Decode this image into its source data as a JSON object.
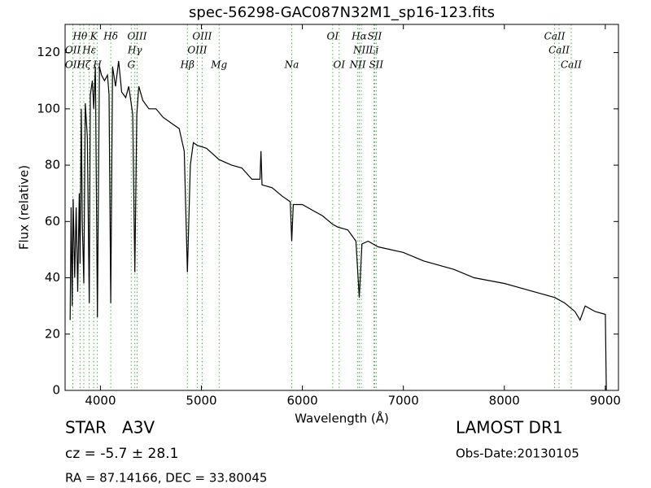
{
  "chart_data": {
    "type": "line",
    "title": "spec-56298-GAC087N32M1_sp16-123.fits",
    "xlabel": "Wavelength (Å)",
    "ylabel": "Flux (relative)",
    "xlim": [
      3650,
      9130
    ],
    "ylim": [
      0,
      130
    ],
    "xticks": [
      4000,
      5000,
      6000,
      7000,
      8000,
      9000
    ],
    "yticks": [
      0,
      20,
      40,
      60,
      80,
      100,
      120
    ],
    "color": "#000000",
    "line_color": "#4caf50",
    "x": [
      3700,
      3710,
      3720,
      3730,
      3745,
      3760,
      3775,
      3790,
      3798,
      3810,
      3820,
      3835,
      3850,
      3870,
      3889,
      3900,
      3920,
      3934,
      3950,
      3970,
      3990,
      4010,
      4040,
      4070,
      4085,
      4102,
      4120,
      4150,
      4180,
      4210,
      4250,
      4280,
      4300,
      4320,
      4341,
      4360,
      4380,
      4420,
      4480,
      4550,
      4620,
      4700,
      4780,
      4830,
      4861,
      4890,
      4920,
      4960,
      5050,
      5175,
      5300,
      5400,
      5500,
      5580,
      5590,
      5600,
      5700,
      5800,
      5880,
      5894,
      5910,
      6000,
      6100,
      6200,
      6300,
      6350,
      6450,
      6530,
      6563,
      6590,
      6650,
      6750,
      7000,
      7200,
      7500,
      7700,
      8000,
      8200,
      8500,
      8600,
      8700,
      8750,
      8800,
      8900,
      9000,
      9010
    ],
    "values": [
      25,
      65,
      30,
      68,
      40,
      65,
      35,
      70,
      45,
      100,
      60,
      38,
      102,
      90,
      31,
      105,
      110,
      100,
      115,
      26,
      115,
      112,
      110,
      112,
      105,
      31,
      115,
      108,
      117,
      106,
      104,
      108,
      103,
      98,
      42,
      98,
      108,
      103,
      100,
      100,
      97,
      95,
      93,
      85,
      42,
      80,
      88,
      87,
      86,
      82,
      80,
      79,
      75,
      75,
      85,
      73,
      72,
      69,
      67,
      53,
      66,
      66,
      64,
      62,
      59,
      58,
      57,
      53,
      33,
      52,
      53,
      51,
      49,
      46,
      43,
      40,
      38,
      36,
      33,
      31,
      28,
      25,
      30,
      28,
      27,
      0
    ],
    "spectral_lines": [
      [
        {
          "label": "Hθ",
          "x": 3798
        },
        {
          "label": "K",
          "x": 3934
        },
        {
          "label": "Hδ",
          "x": 4102
        },
        {
          "label": "OIII",
          "x": 4363
        },
        {
          "label": "OIII",
          "x": 5007
        },
        {
          "label": "OI",
          "x": 6300
        },
        {
          "label": "Hα",
          "x": 6563
        },
        {
          "label": "SII",
          "x": 6716
        },
        {
          "label": "CaII",
          "x": 8498
        }
      ],
      [
        {
          "label": "OII",
          "x": 3727
        },
        {
          "label": "Hε",
          "x": 3889
        },
        {
          "label": "Hγ",
          "x": 4341
        },
        {
          "label": "OIII",
          "x": 4959
        },
        {
          "label": "NII",
          "x": 6583
        },
        {
          "label": "Li",
          "x": 6708
        },
        {
          "label": "CaII",
          "x": 8542
        }
      ],
      [
        {
          "label": "OII",
          "x": 3727
        },
        {
          "label": "Hζ",
          "x": 3835
        },
        {
          "label": "H",
          "x": 3969
        },
        {
          "label": "G",
          "x": 4305
        },
        {
          "label": "Hβ",
          "x": 4861
        },
        {
          "label": "Mg",
          "x": 5175
        },
        {
          "label": "Na",
          "x": 5894
        },
        {
          "label": "OI",
          "x": 6364
        },
        {
          "label": "NII",
          "x": 6548
        },
        {
          "label": "SII",
          "x": 6731
        },
        {
          "label": "CaII",
          "x": 8662
        }
      ]
    ]
  },
  "footer": {
    "class": "STAR   A3V",
    "cz": "cz = -5.7 ± 28.1",
    "coords": "RA = 87.14166, DEC = 33.80045",
    "survey": "LAMOST DR1",
    "date": "Obs-Date:20130105"
  }
}
